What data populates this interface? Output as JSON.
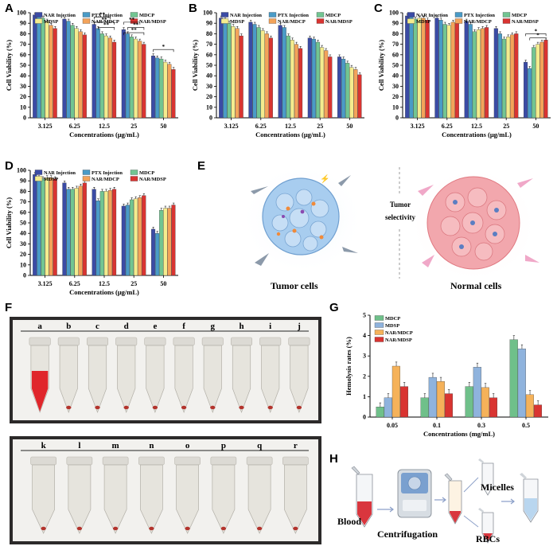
{
  "figure": {
    "panel_labels": {
      "A": "A",
      "B": "B",
      "C": "C",
      "D": "D",
      "E": "E",
      "F": "F",
      "G": "G",
      "H": "H"
    }
  },
  "colors": {
    "NAR Injection": "#3b4ba5",
    "PTX Injection": "#4a9bc7",
    "MDCP": "#72c592",
    "MDSP": "#f4ec8e",
    "NAR/MDCP": "#f3a35a",
    "NAR/MDSP": "#d93431",
    "MDCP_g": "#6fc08a",
    "MDSP_g": "#8fb3dd",
    "NARMDCP_g": "#f5b25a",
    "NARMDSP_g": "#d93431"
  },
  "chart_data": [
    {
      "id": "A",
      "type": "bar",
      "xlabel": "Concentrations (μg/mL)",
      "ylabel": "Cell Viability (%)",
      "ylim": [
        0,
        100
      ],
      "yticks": [
        0,
        10,
        20,
        30,
        40,
        50,
        60,
        70,
        80,
        90,
        100
      ],
      "categories": [
        "3.125",
        "6.25",
        "12.5",
        "25",
        "50"
      ],
      "legend": [
        "NAR Injection",
        "PTX Injection",
        "MDCP",
        "MDSP",
        "NAR/MDCP",
        "NAR/MDSP"
      ],
      "series": [
        {
          "name": "NAR Injection",
          "values": [
            98,
            94,
            89,
            84,
            59
          ]
        },
        {
          "name": "PTX Injection",
          "values": [
            97,
            92,
            85,
            80,
            57
          ]
        },
        {
          "name": "MDCP",
          "values": [
            95,
            88,
            80,
            77,
            56
          ]
        },
        {
          "name": "MDSP",
          "values": [
            92,
            85,
            78,
            75,
            53
          ]
        },
        {
          "name": "NAR/MDCP",
          "values": [
            88,
            82,
            76,
            73,
            51
          ]
        },
        {
          "name": "NAR/MDSP",
          "values": [
            85,
            79,
            72,
            70,
            46
          ]
        }
      ],
      "annotations": [
        "**",
        "**",
        "**",
        "**",
        "**",
        "**",
        "*"
      ]
    },
    {
      "id": "B",
      "type": "bar",
      "xlabel": "Concentrations (μg/mL)",
      "ylabel": "Cell Viability (%)",
      "ylim": [
        0,
        100
      ],
      "yticks": [
        0,
        10,
        20,
        30,
        40,
        50,
        60,
        70,
        80,
        90,
        100
      ],
      "categories": [
        "3.125",
        "6.25",
        "12.5",
        "25",
        "50"
      ],
      "legend": [
        "NAR Injection",
        "PTX Injection",
        "MDCP",
        "MDSP",
        "NAR/MDCP",
        "NAR/MDSP"
      ],
      "series": [
        {
          "name": "NAR Injection",
          "values": [
            95,
            91,
            88,
            76,
            58
          ]
        },
        {
          "name": "PTX Injection",
          "values": [
            93,
            89,
            86,
            75,
            56
          ]
        },
        {
          "name": "MDCP",
          "values": [
            90,
            86,
            78,
            72,
            52
          ]
        },
        {
          "name": "MDSP",
          "values": [
            87,
            83,
            74,
            67,
            48
          ]
        },
        {
          "name": "NAR/MDCP",
          "values": [
            85,
            80,
            70,
            64,
            46
          ]
        },
        {
          "name": "NAR/MDSP",
          "values": [
            78,
            76,
            66,
            58,
            41
          ]
        }
      ]
    },
    {
      "id": "C",
      "type": "bar",
      "xlabel": "Concentrations (μg/mL)",
      "ylabel": "Cell Viability (%)",
      "ylim": [
        0,
        100
      ],
      "yticks": [
        0,
        10,
        20,
        30,
        40,
        50,
        60,
        70,
        80,
        90,
        100
      ],
      "categories": [
        "3.125",
        "6.25",
        "12.5",
        "25",
        "50"
      ],
      "legend": [
        "NAR Injection",
        "PTX Injection",
        "MDCP",
        "MDSP",
        "NAR/MDCP",
        "NAR/MDSP"
      ],
      "series": [
        {
          "name": "NAR Injection",
          "values": [
            97,
            95,
            92,
            85,
            53
          ]
        },
        {
          "name": "PTX Injection",
          "values": [
            96,
            93,
            89,
            80,
            47
          ]
        },
        {
          "name": "MDCP",
          "values": [
            94,
            89,
            82,
            75,
            67
          ]
        },
        {
          "name": "MDSP",
          "values": [
            95,
            88,
            84,
            77,
            70
          ]
        },
        {
          "name": "NAR/MDCP",
          "values": [
            95,
            91,
            85,
            79,
            72
          ]
        },
        {
          "name": "NAR/MDSP",
          "values": [
            93,
            90,
            86,
            80,
            74
          ]
        }
      ],
      "annotations": [
        "*",
        "*"
      ]
    },
    {
      "id": "D",
      "type": "bar",
      "xlabel": "Concentrations (μg/mL)",
      "ylabel": "Cell Viability (%)",
      "ylim": [
        0,
        100
      ],
      "yticks": [
        0,
        10,
        20,
        30,
        40,
        50,
        60,
        70,
        80,
        90,
        100
      ],
      "categories": [
        "3.125",
        "6.25",
        "12.5",
        "25",
        "50"
      ],
      "legend": [
        "NAR Injection",
        "PTX Injection",
        "MDCP",
        "MDSP",
        "NAR/MDCP",
        "NAR/MDSP"
      ],
      "series": [
        {
          "name": "NAR Injection",
          "values": [
            96,
            88,
            82,
            66,
            44
          ]
        },
        {
          "name": "PTX Injection",
          "values": [
            93,
            82,
            71,
            67,
            40
          ]
        },
        {
          "name": "MDCP",
          "values": [
            92,
            82,
            80,
            72,
            62
          ]
        },
        {
          "name": "MDSP",
          "values": [
            93,
            83,
            80,
            73,
            64
          ]
        },
        {
          "name": "NAR/MDCP",
          "values": [
            93,
            85,
            81,
            74,
            64
          ]
        },
        {
          "name": "NAR/MDSP",
          "values": [
            92,
            88,
            82,
            76,
            67
          ]
        }
      ]
    },
    {
      "id": "G",
      "type": "bar",
      "xlabel": "Concentrations (mg/mL)",
      "ylabel": "Hemolysis rates (%)",
      "ylim": [
        0,
        5
      ],
      "yticks": [
        0,
        1,
        2,
        3,
        4,
        5
      ],
      "categories": [
        "0.05",
        "0.1",
        "0.3",
        "0.5"
      ],
      "legend": [
        "MDCP",
        "MDSP",
        "NAR/MDCP",
        "NAR/MDSP"
      ],
      "series": [
        {
          "name": "MDCP",
          "values": [
            0.5,
            0.95,
            1.5,
            3.8
          ]
        },
        {
          "name": "MDSP",
          "values": [
            0.95,
            1.95,
            2.45,
            3.35
          ]
        },
        {
          "name": "NAR/MDCP",
          "values": [
            2.5,
            1.75,
            1.45,
            1.1
          ]
        },
        {
          "name": "NAR/MDSP",
          "values": [
            1.5,
            1.15,
            0.95,
            0.6
          ]
        }
      ]
    }
  ],
  "panelE": {
    "tumor_label": "Tumor cells",
    "normal_label": "Normal cells",
    "center_line1": "Tumor",
    "center_line2": "selectivity"
  },
  "panelF": {
    "row1": [
      "a",
      "b",
      "c",
      "d",
      "e",
      "f",
      "g",
      "h",
      "i",
      "j"
    ],
    "row2": [
      "k",
      "l",
      "m",
      "n",
      "o",
      "p",
      "q",
      "r"
    ]
  },
  "panelH": {
    "blood": "Blood",
    "centrifugation": "Centrifugation",
    "micelles": "Micelles",
    "rbcs": "RBCs"
  }
}
